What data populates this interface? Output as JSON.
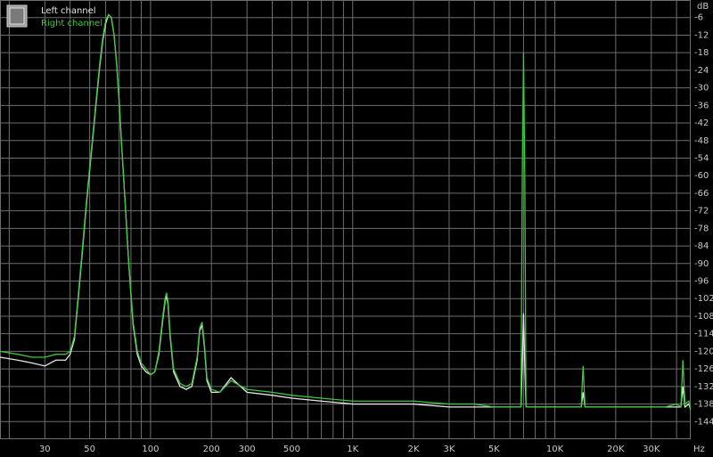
{
  "chart_data": {
    "type": "line",
    "x_label": "Hz",
    "y_label": "dB",
    "log_x": true,
    "grid": true,
    "legend": "top-left",
    "xlim": [
      18,
      47000
    ],
    "ylim": [
      -150,
      0
    ],
    "xticks": [
      30,
      50,
      100,
      200,
      300,
      500,
      {
        "value": 1000,
        "label": "1K"
      },
      {
        "value": 2000,
        "label": "2K"
      },
      {
        "value": 3000,
        "label": "3K"
      },
      {
        "value": 5000,
        "label": "5K"
      },
      {
        "value": 10000,
        "label": "10K"
      },
      {
        "value": 20000,
        "label": "20K"
      },
      {
        "value": 30000,
        "label": "30K"
      }
    ],
    "xminor": [
      20,
      40,
      60,
      70,
      80,
      90,
      400,
      600,
      700,
      800,
      900,
      4000,
      6000,
      7000,
      8000,
      9000,
      40000
    ],
    "yticks": [
      -6,
      -12,
      -18,
      -24,
      -30,
      -36,
      -42,
      -48,
      -54,
      -60,
      -66,
      -72,
      -78,
      -84,
      -90,
      -96,
      -102,
      -108,
      -114,
      -120,
      -126,
      -132,
      -138,
      -144
    ],
    "x": [
      18,
      22,
      26,
      30,
      34,
      38,
      40,
      42,
      44,
      46,
      48,
      50,
      52,
      54,
      56,
      58,
      60,
      62,
      64,
      66,
      68,
      70,
      72,
      75,
      78,
      82,
      86,
      90,
      95,
      100,
      105,
      110,
      115,
      118,
      120,
      122,
      125,
      130,
      140,
      150,
      160,
      170,
      175,
      180,
      185,
      190,
      200,
      220,
      250,
      300,
      400,
      500,
      700,
      1000,
      1500,
      2000,
      3000,
      4000,
      5000,
      6000,
      6800,
      6900,
      7000,
      7100,
      7200,
      8000,
      10000,
      12000,
      13500,
      13800,
      14100,
      16000,
      20000,
      25000,
      30000,
      35000,
      40000,
      42000,
      43000,
      44000,
      46000,
      47000
    ],
    "series": [
      {
        "name": "Left channel",
        "color": "#e6e6e6",
        "values": [
          -122,
          -123,
          -124,
          -125,
          -123,
          -123,
          -121,
          -116,
          -101,
          -86,
          -71,
          -58,
          -46,
          -34,
          -23,
          -14,
          -8,
          -5,
          -6,
          -12,
          -22,
          -35,
          -50,
          -70,
          -90,
          -111,
          -121,
          -125,
          -127,
          -128,
          -127,
          -121,
          -109,
          -103,
          -101,
          -104,
          -115,
          -127,
          -132,
          -133,
          -132,
          -123,
          -113,
          -111,
          -119,
          -130,
          -134,
          -134,
          -129,
          -134,
          -135,
          -136,
          -137,
          -138,
          -138,
          -138,
          -139,
          -139,
          -139,
          -139,
          -139,
          -125,
          -107,
          -125,
          -139,
          -139,
          -139,
          -139,
          -139,
          -134,
          -139,
          -139,
          -139,
          -139,
          -139,
          -139,
          -139,
          -139,
          -132,
          -139,
          -138,
          -140
        ]
      },
      {
        "name": "Right channel",
        "color": "#3cc83c",
        "values": [
          -120,
          -121,
          -122,
          -122,
          -121,
          -121,
          -120,
          -115,
          -100,
          -85,
          -70,
          -57,
          -45,
          -33,
          -22,
          -13,
          -7,
          -5,
          -6,
          -12,
          -22,
          -35,
          -50,
          -70,
          -90,
          -110,
          -120,
          -124,
          -126,
          -128,
          -127,
          -120,
          -108,
          -102,
          -100,
          -103,
          -114,
          -126,
          -131,
          -132,
          -131,
          -122,
          -112,
          -110,
          -118,
          -129,
          -133,
          -134,
          -130,
          -133,
          -134,
          -135,
          -136,
          -137,
          -137,
          -137,
          -138,
          -138,
          -139,
          -139,
          -139,
          -60,
          -18,
          -60,
          -139,
          -139,
          -139,
          -139,
          -139,
          -125,
          -139,
          -139,
          -139,
          -139,
          -139,
          -139,
          -138,
          -139,
          -123,
          -138,
          -137,
          -140
        ]
      }
    ]
  }
}
